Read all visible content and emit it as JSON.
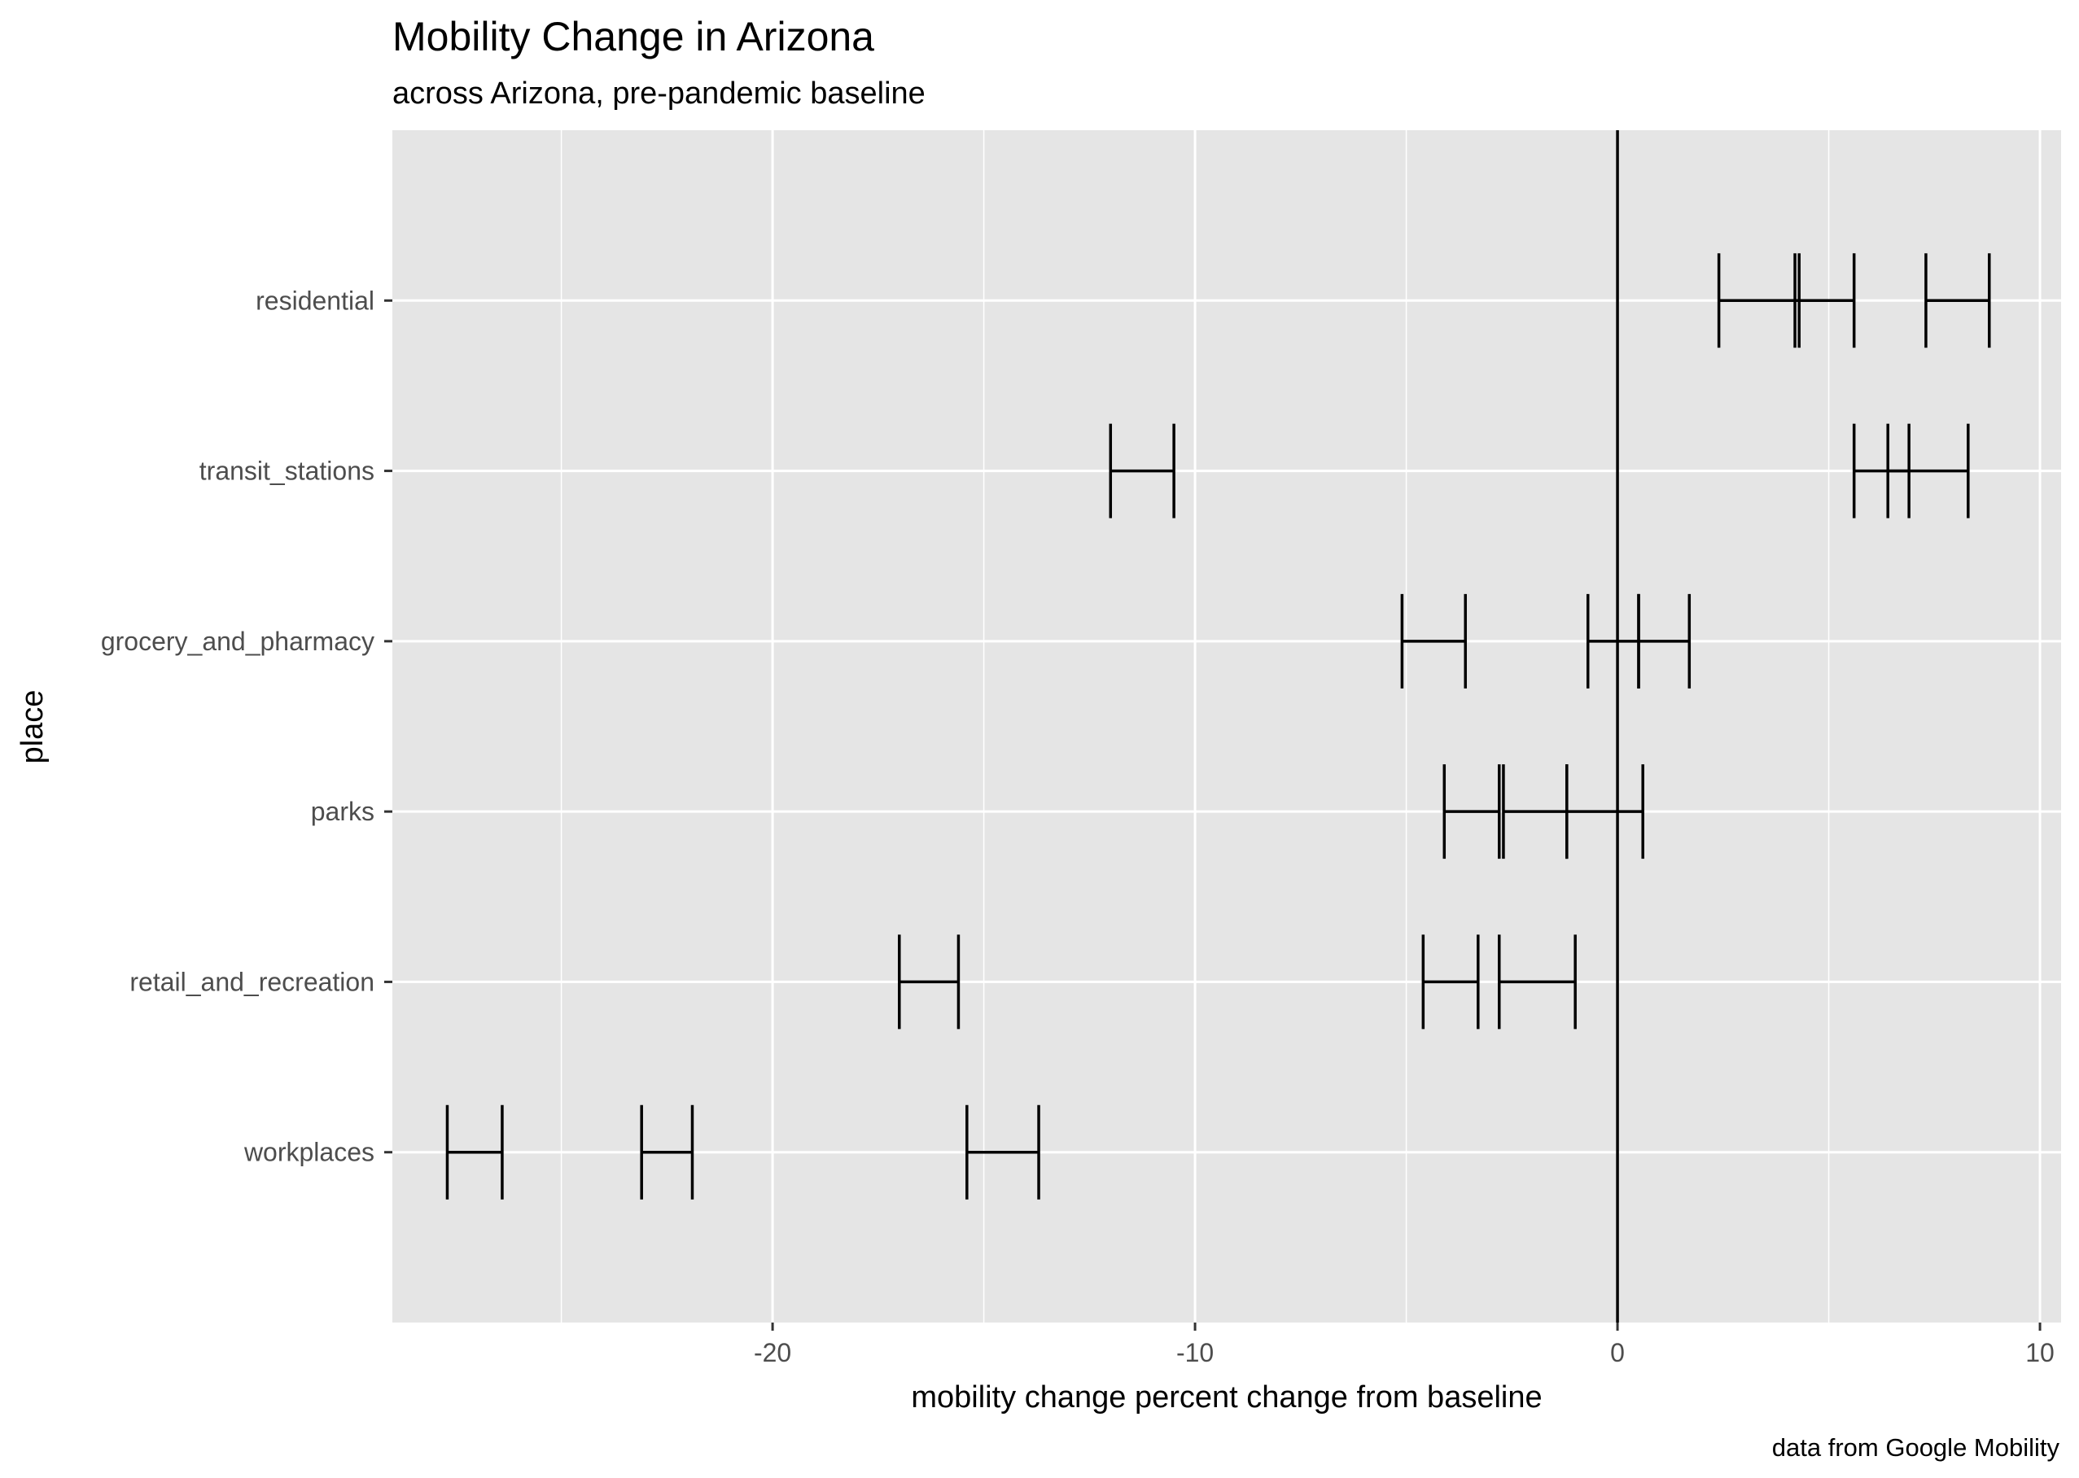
{
  "chart_data": {
    "type": "errorbar",
    "title": "Mobility Change in Arizona",
    "subtitle": "across Arizona, pre-pandemic baseline",
    "xlabel": "mobility change percent change from baseline",
    "ylabel": "place",
    "caption": "data from Google Mobility",
    "xlim": [
      -29,
      10.5
    ],
    "x_ticks": [
      -20,
      -10,
      0,
      10
    ],
    "reference_line_x": 0,
    "grid": true,
    "categories": [
      "workplaces",
      "retail_and_recreation",
      "parks",
      "grocery_and_pharmacy",
      "transit_stations",
      "residential"
    ],
    "intervals": {
      "workplaces": [
        [
          -27.7,
          -26.4
        ],
        [
          -23.1,
          -21.9
        ],
        [
          -15.4,
          -13.7
        ]
      ],
      "retail_and_recreation": [
        [
          -17.0,
          -15.6
        ],
        [
          -4.6,
          -3.3
        ],
        [
          -2.8,
          -1.0
        ]
      ],
      "parks": [
        [
          -4.1,
          -2.8
        ],
        [
          -2.7,
          -1.2
        ],
        [
          -1.2,
          0.6
        ]
      ],
      "grocery_and_pharmacy": [
        [
          -5.1,
          -3.6
        ],
        [
          -0.7,
          0.5
        ],
        [
          0.5,
          1.7
        ]
      ],
      "transit_stations": [
        [
          -12.0,
          -10.5
        ],
        [
          5.6,
          6.9
        ],
        [
          6.4,
          8.3
        ]
      ],
      "residential": [
        [
          2.4,
          4.3
        ],
        [
          4.2,
          5.6
        ],
        [
          7.3,
          8.8
        ]
      ]
    },
    "colors": {
      "panel": "#e5e5e5",
      "grid": "#ffffff",
      "bar": "#000000",
      "tick_text": "#4d4d4d"
    }
  }
}
